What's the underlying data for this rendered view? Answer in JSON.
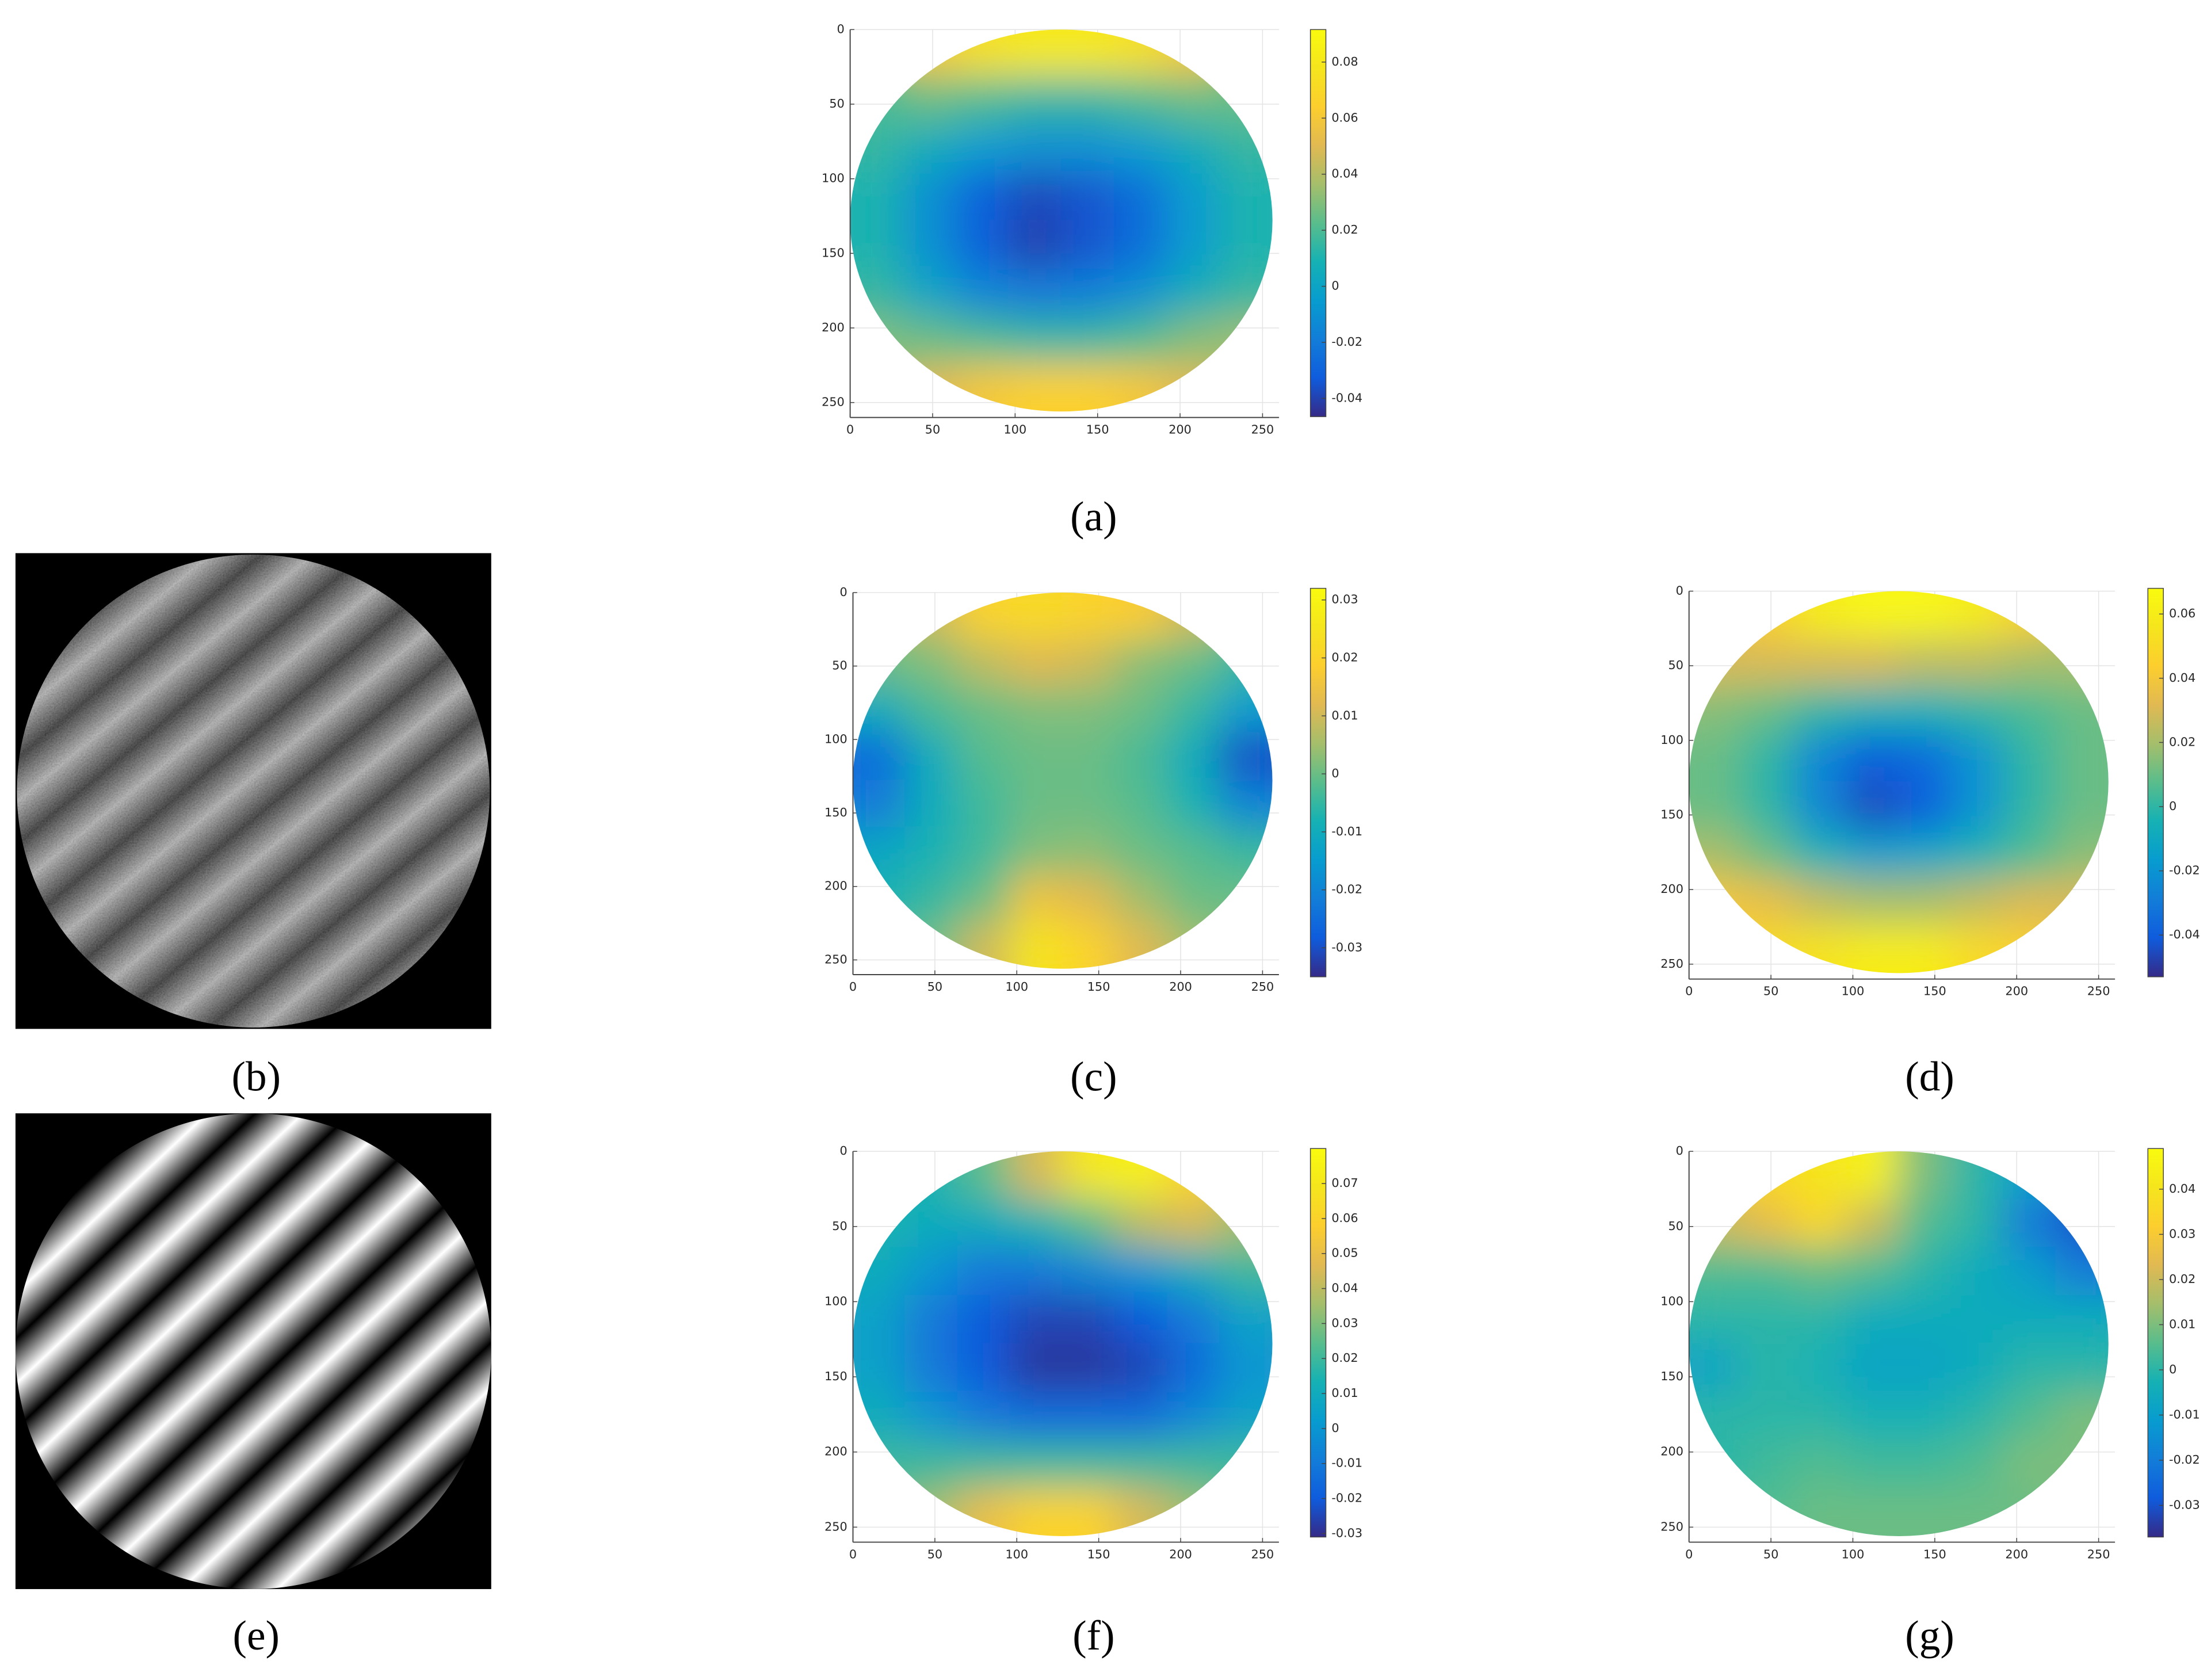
{
  "chart_data": [
    {
      "type": "heatmap",
      "title": "(a)",
      "colormap": "parula",
      "grid": true,
      "y_reversed": true,
      "x": [
        16,
        48,
        80,
        112,
        144,
        176,
        208,
        240
      ],
      "y": [
        16,
        48,
        80,
        112,
        144,
        176,
        208,
        240
      ],
      "z": [
        [
          null,
          0.06,
          0.075,
          0.08,
          0.08,
          0.075,
          0.06,
          null
        ],
        [
          0.02,
          0.025,
          0.02,
          0.015,
          0.015,
          0.02,
          0.025,
          0.025
        ],
        [
          0.015,
          0.005,
          -0.005,
          -0.01,
          -0.01,
          -0.005,
          0.005,
          0.015
        ],
        [
          0.01,
          -0.01,
          -0.03,
          -0.038,
          -0.035,
          -0.025,
          -0.005,
          0.01
        ],
        [
          0.01,
          -0.01,
          -0.03,
          -0.04,
          -0.035,
          -0.025,
          -0.005,
          0.01
        ],
        [
          0.015,
          0.0,
          -0.015,
          -0.02,
          -0.018,
          -0.01,
          0.005,
          0.015
        ],
        [
          0.03,
          0.025,
          0.02,
          0.015,
          0.015,
          0.02,
          0.03,
          0.035
        ],
        [
          null,
          0.05,
          0.06,
          0.065,
          0.065,
          0.06,
          0.05,
          null
        ]
      ],
      "xlim": [
        0,
        260
      ],
      "ylim": [
        0,
        260
      ],
      "xticks": [
        0,
        50,
        100,
        150,
        200,
        250
      ],
      "yticks": [
        0,
        50,
        100,
        150,
        200,
        250
      ],
      "clim": [
        -0.0465,
        0.0916
      ],
      "cticks": [
        -0.04,
        -0.02,
        0,
        0.02,
        0.04,
        0.06,
        0.08
      ]
    },
    {
      "type": "heatmap",
      "title": "(c)",
      "colormap": "parula",
      "grid": true,
      "y_reversed": true,
      "x": [
        16,
        48,
        80,
        112,
        144,
        176,
        208,
        240
      ],
      "y": [
        16,
        48,
        80,
        112,
        144,
        176,
        208,
        240
      ],
      "z": [
        [
          null,
          0.01,
          0.02,
          0.022,
          0.02,
          0.018,
          0.01,
          null
        ],
        [
          0.0,
          0.002,
          0.008,
          0.012,
          0.01,
          0.003,
          0.0,
          -0.005
        ],
        [
          -0.01,
          -0.003,
          0.0,
          0.002,
          0.002,
          0.0,
          -0.005,
          -0.015
        ],
        [
          -0.025,
          -0.01,
          -0.002,
          0.0,
          0.0,
          -0.003,
          -0.01,
          -0.03
        ],
        [
          -0.022,
          -0.01,
          -0.004,
          0.0,
          0.0,
          -0.002,
          -0.008,
          -0.02
        ],
        [
          -0.012,
          -0.008,
          -0.004,
          0.002,
          0.003,
          0.0,
          -0.002,
          -0.005
        ],
        [
          -0.008,
          -0.005,
          0.0,
          0.015,
          0.012,
          0.005,
          0.0,
          0.0
        ],
        [
          null,
          0.0,
          0.01,
          0.025,
          0.02,
          0.012,
          0.005,
          null
        ]
      ],
      "xlim": [
        0,
        260
      ],
      "ylim": [
        0,
        260
      ],
      "xticks": [
        0,
        50,
        100,
        150,
        200,
        250
      ],
      "yticks": [
        0,
        50,
        100,
        150,
        200,
        250
      ],
      "clim": [
        -0.035,
        0.032
      ],
      "cticks": [
        -0.03,
        -0.02,
        -0.01,
        0,
        0.01,
        0.02,
        0.03
      ]
    },
    {
      "type": "heatmap",
      "title": "(d)",
      "colormap": "parula",
      "grid": true,
      "y_reversed": true,
      "x": [
        16,
        48,
        80,
        112,
        144,
        176,
        208,
        240
      ],
      "y": [
        16,
        48,
        80,
        112,
        144,
        176,
        208,
        240
      ],
      "z": [
        [
          null,
          0.045,
          0.06,
          0.065,
          0.065,
          0.06,
          0.045,
          null
        ],
        [
          0.03,
          0.03,
          0.03,
          0.03,
          0.025,
          0.025,
          0.02,
          0.02
        ],
        [
          0.015,
          0.01,
          0.0,
          -0.005,
          -0.005,
          0.0,
          0.005,
          0.01
        ],
        [
          0.01,
          0.0,
          -0.025,
          -0.04,
          -0.035,
          -0.02,
          0.0,
          0.01
        ],
        [
          0.01,
          0.0,
          -0.025,
          -0.045,
          -0.04,
          -0.02,
          0.0,
          0.01
        ],
        [
          0.02,
          0.01,
          -0.005,
          -0.015,
          -0.012,
          -0.005,
          0.005,
          0.015
        ],
        [
          0.04,
          0.035,
          0.025,
          0.02,
          0.02,
          0.025,
          0.03,
          0.03
        ],
        [
          null,
          0.05,
          0.055,
          0.06,
          0.06,
          0.05,
          0.045,
          null
        ]
      ],
      "xlim": [
        0,
        260
      ],
      "ylim": [
        0,
        260
      ],
      "xticks": [
        0,
        50,
        100,
        150,
        200,
        250
      ],
      "yticks": [
        0,
        50,
        100,
        150,
        200,
        250
      ],
      "clim": [
        -0.053,
        0.068
      ],
      "cticks": [
        -0.04,
        -0.02,
        0,
        0.02,
        0.04,
        0.06
      ]
    },
    {
      "type": "heatmap",
      "title": "(f)",
      "colormap": "parula",
      "grid": true,
      "y_reversed": true,
      "x": [
        16,
        48,
        80,
        112,
        144,
        176,
        208,
        240
      ],
      "y": [
        16,
        48,
        80,
        112,
        144,
        176,
        208,
        240
      ],
      "z": [
        [
          null,
          0.015,
          0.025,
          0.045,
          0.07,
          0.075,
          0.06,
          null
        ],
        [
          0.015,
          0.01,
          0.01,
          0.015,
          0.025,
          0.04,
          0.045,
          0.035
        ],
        [
          0.01,
          0.0,
          -0.01,
          -0.01,
          -0.005,
          0.0,
          0.01,
          0.02
        ],
        [
          0.005,
          -0.01,
          -0.02,
          -0.025,
          -0.025,
          -0.02,
          -0.01,
          0.005
        ],
        [
          0.005,
          -0.01,
          -0.02,
          -0.028,
          -0.028,
          -0.025,
          -0.015,
          0.0
        ],
        [
          0.01,
          0.0,
          -0.01,
          -0.015,
          -0.015,
          -0.015,
          -0.005,
          0.005
        ],
        [
          0.02,
          0.02,
          0.02,
          0.02,
          0.02,
          0.02,
          0.02,
          0.02
        ],
        [
          null,
          0.035,
          0.05,
          0.06,
          0.06,
          0.045,
          0.035,
          null
        ]
      ],
      "xlim": [
        0,
        260
      ],
      "ylim": [
        0,
        260
      ],
      "xticks": [
        0,
        50,
        100,
        150,
        200,
        250
      ],
      "yticks": [
        0,
        50,
        100,
        150,
        200,
        250
      ],
      "clim": [
        -0.031,
        0.08
      ],
      "cticks": [
        -0.03,
        -0.02,
        -0.01,
        0,
        0.01,
        0.02,
        0.03,
        0.04,
        0.05,
        0.06,
        0.07
      ]
    },
    {
      "type": "heatmap",
      "title": "(g)",
      "colormap": "parula",
      "grid": true,
      "y_reversed": true,
      "x": [
        16,
        48,
        80,
        112,
        144,
        176,
        208,
        240
      ],
      "y": [
        16,
        48,
        80,
        112,
        144,
        176,
        208,
        240
      ],
      "z": [
        [
          null,
          0.035,
          0.04,
          0.045,
          0.01,
          0.0,
          -0.01,
          null
        ],
        [
          0.02,
          0.025,
          0.035,
          0.02,
          0.005,
          0.0,
          -0.02,
          -0.03
        ],
        [
          0.005,
          0.005,
          0.008,
          0.005,
          0.0,
          -0.005,
          -0.01,
          -0.02
        ],
        [
          0.0,
          0.0,
          0.0,
          -0.005,
          -0.005,
          -0.005,
          -0.005,
          -0.005
        ],
        [
          -0.008,
          0.0,
          -0.003,
          -0.008,
          -0.008,
          -0.005,
          0.0,
          0.0
        ],
        [
          0.0,
          0.0,
          0.0,
          -0.003,
          -0.003,
          0.0,
          0.005,
          0.01
        ],
        [
          0.0,
          0.003,
          0.005,
          0.003,
          0.003,
          0.005,
          0.01,
          0.01
        ],
        [
          null,
          0.005,
          0.008,
          0.008,
          0.008,
          0.008,
          0.008,
          null
        ]
      ],
      "xlim": [
        0,
        260
      ],
      "ylim": [
        0,
        260
      ],
      "xticks": [
        0,
        50,
        100,
        150,
        200,
        250
      ],
      "yticks": [
        0,
        50,
        100,
        150,
        200,
        250
      ],
      "clim": [
        -0.037,
        0.049
      ],
      "cticks": [
        -0.03,
        -0.02,
        -0.01,
        0,
        0.01,
        0.02,
        0.03,
        0.04
      ]
    }
  ],
  "images": [
    {
      "label": "(b)"
    },
    {
      "label": "(e)"
    }
  ]
}
